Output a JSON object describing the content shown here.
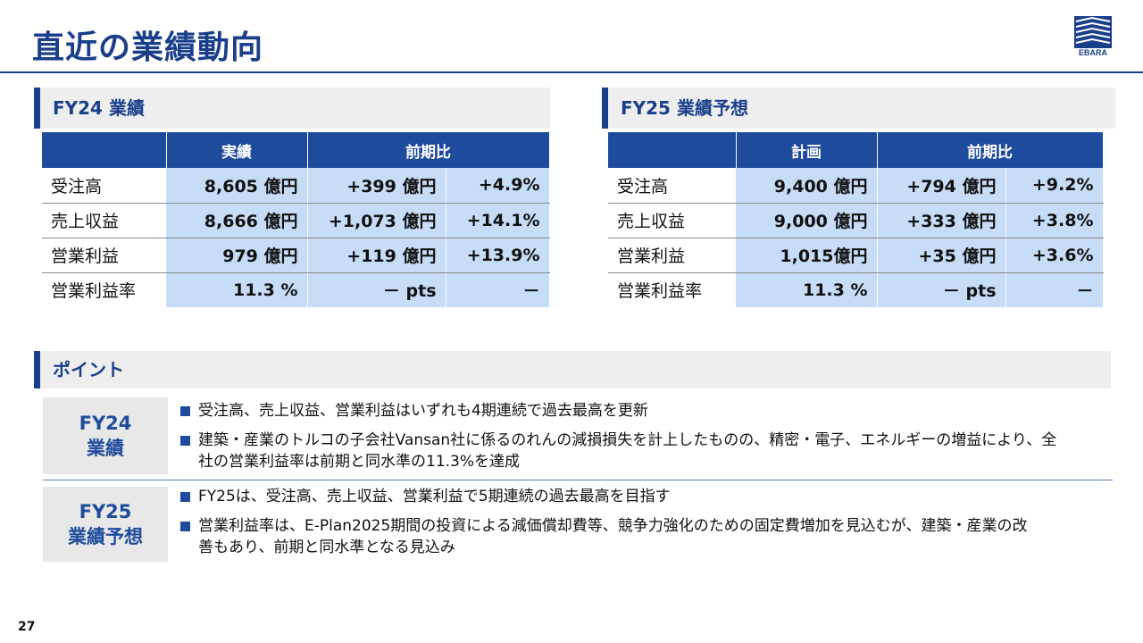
{
  "title": "直近の業績動向",
  "logo": {
    "text": "EBARA"
  },
  "fy24": {
    "heading": "FY24 業績",
    "col_actual": "実績",
    "col_yoy": "前期比",
    "rows": [
      {
        "label": "受注高",
        "value": "8,605 億円",
        "diff": "+399 億円",
        "pct": "+4.9%"
      },
      {
        "label": "売上収益",
        "value": "8,666 億円",
        "diff": "+1,073 億円",
        "pct": "+14.1%"
      },
      {
        "label": "営業利益",
        "value": "979 億円",
        "diff": "+119 億円",
        "pct": "+13.9%"
      },
      {
        "label": "営業利益率",
        "value": "11.3 %",
        "diff": "－ pts",
        "pct": "－"
      }
    ]
  },
  "fy25": {
    "heading": "FY25 業績予想",
    "col_plan": "計画",
    "col_yoy": "前期比",
    "rows": [
      {
        "label": "受注高",
        "value": "9,400 億円",
        "diff": "+794 億円",
        "pct": "+9.2%"
      },
      {
        "label": "売上収益",
        "value": "9,000 億円",
        "diff": "+333 億円",
        "pct": "+3.8%"
      },
      {
        "label": "営業利益",
        "value": "1,015億円",
        "diff": "+35 億円",
        "pct": "+3.6%"
      },
      {
        "label": "営業利益率",
        "value": "11.3 %",
        "diff": "－ pts",
        "pct": "－"
      }
    ]
  },
  "points": {
    "heading": "ポイント",
    "fy24_label_1": "FY24",
    "fy24_label_2": "業績",
    "fy24_bullets": [
      "受注高、売上収益、営業利益はいずれも4期連続で過去最高を更新",
      "建築・産業のトルコの子会社Vansan社に係るのれんの減損損失を計上したものの、精密・電子、エネルギーの増益により、全社の営業利益率は前期と同水準の11.3%を達成"
    ],
    "fy25_label_1": "FY25",
    "fy25_label_2": "業績予想",
    "fy25_bullets": [
      "FY25は、受注高、売上収益、営業利益で5期連続の過去最高を目指す",
      "営業利益率は、E-Plan2025期間の投資による減価償却費等、競争力強化のための固定費増加を見込むが、建築・産業の改善もあり、前期と同水準となる見込み"
    ]
  },
  "page_number": "27",
  "colors": {
    "primary": "#1a3f8a",
    "header_bg": "#1e4b9c",
    "value_bg": "#c6dcf7"
  }
}
